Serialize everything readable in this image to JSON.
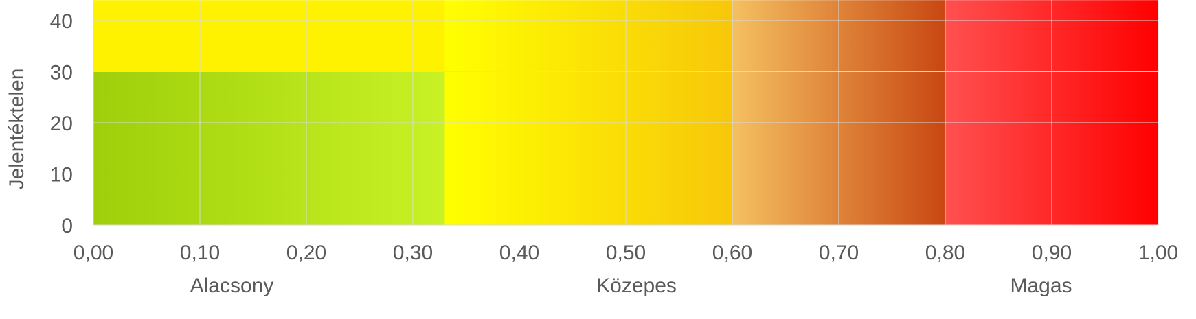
{
  "chart_data": {
    "type": "heatmap",
    "ylabel": "Jelentéktelen",
    "x_ticks": [
      "0,00",
      "0,10",
      "0,20",
      "0,30",
      "0,40",
      "0,50",
      "0,60",
      "0,70",
      "0,80",
      "0,90",
      "1,00"
    ],
    "y_ticks": [
      "0",
      "10",
      "20",
      "30",
      "40"
    ],
    "xlim": [
      0,
      1
    ],
    "ylim": [
      0,
      44
    ],
    "grid": true,
    "category_labels": [
      {
        "label": "Alacsony",
        "x": 0.13
      },
      {
        "label": "Közepes",
        "x": 0.51
      },
      {
        "label": "Magas",
        "x": 0.89
      }
    ],
    "regions": [
      {
        "x": [
          0.0,
          0.33
        ],
        "y": [
          0,
          30
        ],
        "color_start": "#9ecf0a",
        "color_end": "#c8f225",
        "level": "Alacsony"
      },
      {
        "x": [
          0.0,
          0.33
        ],
        "y": [
          30,
          44
        ],
        "color_start": "#fff200",
        "color_end": "#fff200",
        "level": "Közepes"
      },
      {
        "x": [
          0.33,
          0.6
        ],
        "y": [
          0,
          44
        ],
        "color_start": "#ffff00",
        "color_end": "#f7c70a",
        "level": "Közepes"
      },
      {
        "x": [
          0.6,
          0.8
        ],
        "y": [
          0,
          44
        ],
        "color_start": "#f5c060",
        "color_end": "#c84712",
        "level": "Közepes"
      },
      {
        "x": [
          0.8,
          1.0
        ],
        "y": [
          0,
          44
        ],
        "color_start": "#ff5050",
        "color_end": "#ff0000",
        "level": "Magas"
      }
    ],
    "colors": {
      "grid": "#d9d9d9",
      "tick_text": "#595959",
      "axis": "#d9d9d9"
    }
  }
}
